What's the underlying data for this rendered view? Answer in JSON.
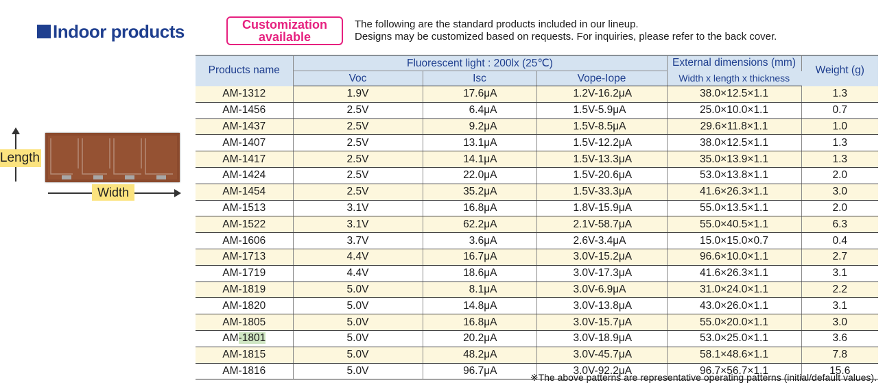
{
  "heading": "Indoor products",
  "badge": {
    "line1": "Customization",
    "line2": "available"
  },
  "intro": [
    "The following are the standard products included in our lineup.",
    "Designs may be customized based on requests. For inquiries, please refer to the back cover."
  ],
  "figure": {
    "length_label": "Length",
    "width_label": "Width"
  },
  "table": {
    "header": {
      "name": "Products name",
      "group": "Fluorescent light : 200lx (25℃)",
      "voc": "Voc",
      "isc": "Isc",
      "vope": "Vope-Iope",
      "dim_line1": "External dimensions (mm)",
      "dim_line2": "Width x length x thickness",
      "weight": "Weight (g)"
    },
    "rows": [
      [
        "AM-1312",
        "1.9V",
        "17.6μA",
        "1.2V-16.2μA",
        "38.0×12.5×1.1",
        "1.3"
      ],
      [
        "AM-1456",
        "2.5V",
        "6.4μA",
        "1.5V-5.9μA",
        "25.0×10.0×1.1",
        "0.7"
      ],
      [
        "AM-1437",
        "2.5V",
        "9.2μA",
        "1.5V-8.5μA",
        "29.6×11.8×1.1",
        "1.0"
      ],
      [
        "AM-1407",
        "2.5V",
        "13.1μA",
        "1.5V-12.2μA",
        "38.0×12.5×1.1",
        "1.3"
      ],
      [
        "AM-1417",
        "2.5V",
        "14.1μA",
        "1.5V-13.3μA",
        "35.0×13.9×1.1",
        "1.3"
      ],
      [
        "AM-1424",
        "2.5V",
        "22.0μA",
        "1.5V-20.6μA",
        "53.0×13.8×1.1",
        "2.0"
      ],
      [
        "AM-1454",
        "2.5V",
        "35.2μA",
        "1.5V-33.3μA",
        "41.6×26.3×1.1",
        "3.0"
      ],
      [
        "AM-1513",
        "3.1V",
        "16.8μA",
        "1.8V-15.9μA",
        "55.0×13.5×1.1",
        "2.0"
      ],
      [
        "AM-1522",
        "3.1V",
        "62.2μA",
        "2.1V-58.7μA",
        "55.0×40.5×1.1",
        "6.3"
      ],
      [
        "AM-1606",
        "3.7V",
        "3.6μA",
        "2.6V-3.4μA",
        "15.0×15.0×0.7",
        "0.4"
      ],
      [
        "AM-1713",
        "4.4V",
        "16.7μA",
        "3.0V-15.2μA",
        "96.6×10.0×1.1",
        "2.7"
      ],
      [
        "AM-1719",
        "4.4V",
        "18.6μA",
        "3.0V-17.3μA",
        "41.6×26.3×1.1",
        "3.1"
      ],
      [
        "AM-1819",
        "5.0V",
        "8.1μA",
        "3.0V-6.9μA",
        "31.0×24.0×1.1",
        "2.2"
      ],
      [
        "AM-1820",
        "5.0V",
        "14.8μA",
        "3.0V-13.8μA",
        "43.0×26.0×1.1",
        "3.1"
      ],
      [
        "AM-1805",
        "5.0V",
        "16.8μA",
        "3.0V-15.7μA",
        "55.0×20.0×1.1",
        "3.0"
      ],
      [
        "AM-1801",
        "5.0V",
        "20.2μA",
        "3.0V-18.9μA",
        "53.0×25.0×1.1",
        "3.6"
      ],
      [
        "AM-1815",
        "5.0V",
        "48.2μA",
        "3.0V-45.7μA",
        "58.1×48.6×1.1",
        "7.8"
      ],
      [
        "AM-1816",
        "5.0V",
        "96.7μA",
        "3.0V-92.2μA",
        "96.7×56.7×1.1",
        "15.6"
      ]
    ],
    "highlighted_row": "AM-1801"
  },
  "footnote": "※The above patterns are representative operating patterns (initial/default values).",
  "colors": {
    "heading": "#1f3f8f",
    "badge": "#e6207f",
    "header_bg": "#d5e3f1",
    "row_stripe": "#fdf7dd",
    "label_bg": "#fbe37f",
    "cell_brown": "#8a4a2e",
    "highlight": "#cfe6c3"
  }
}
